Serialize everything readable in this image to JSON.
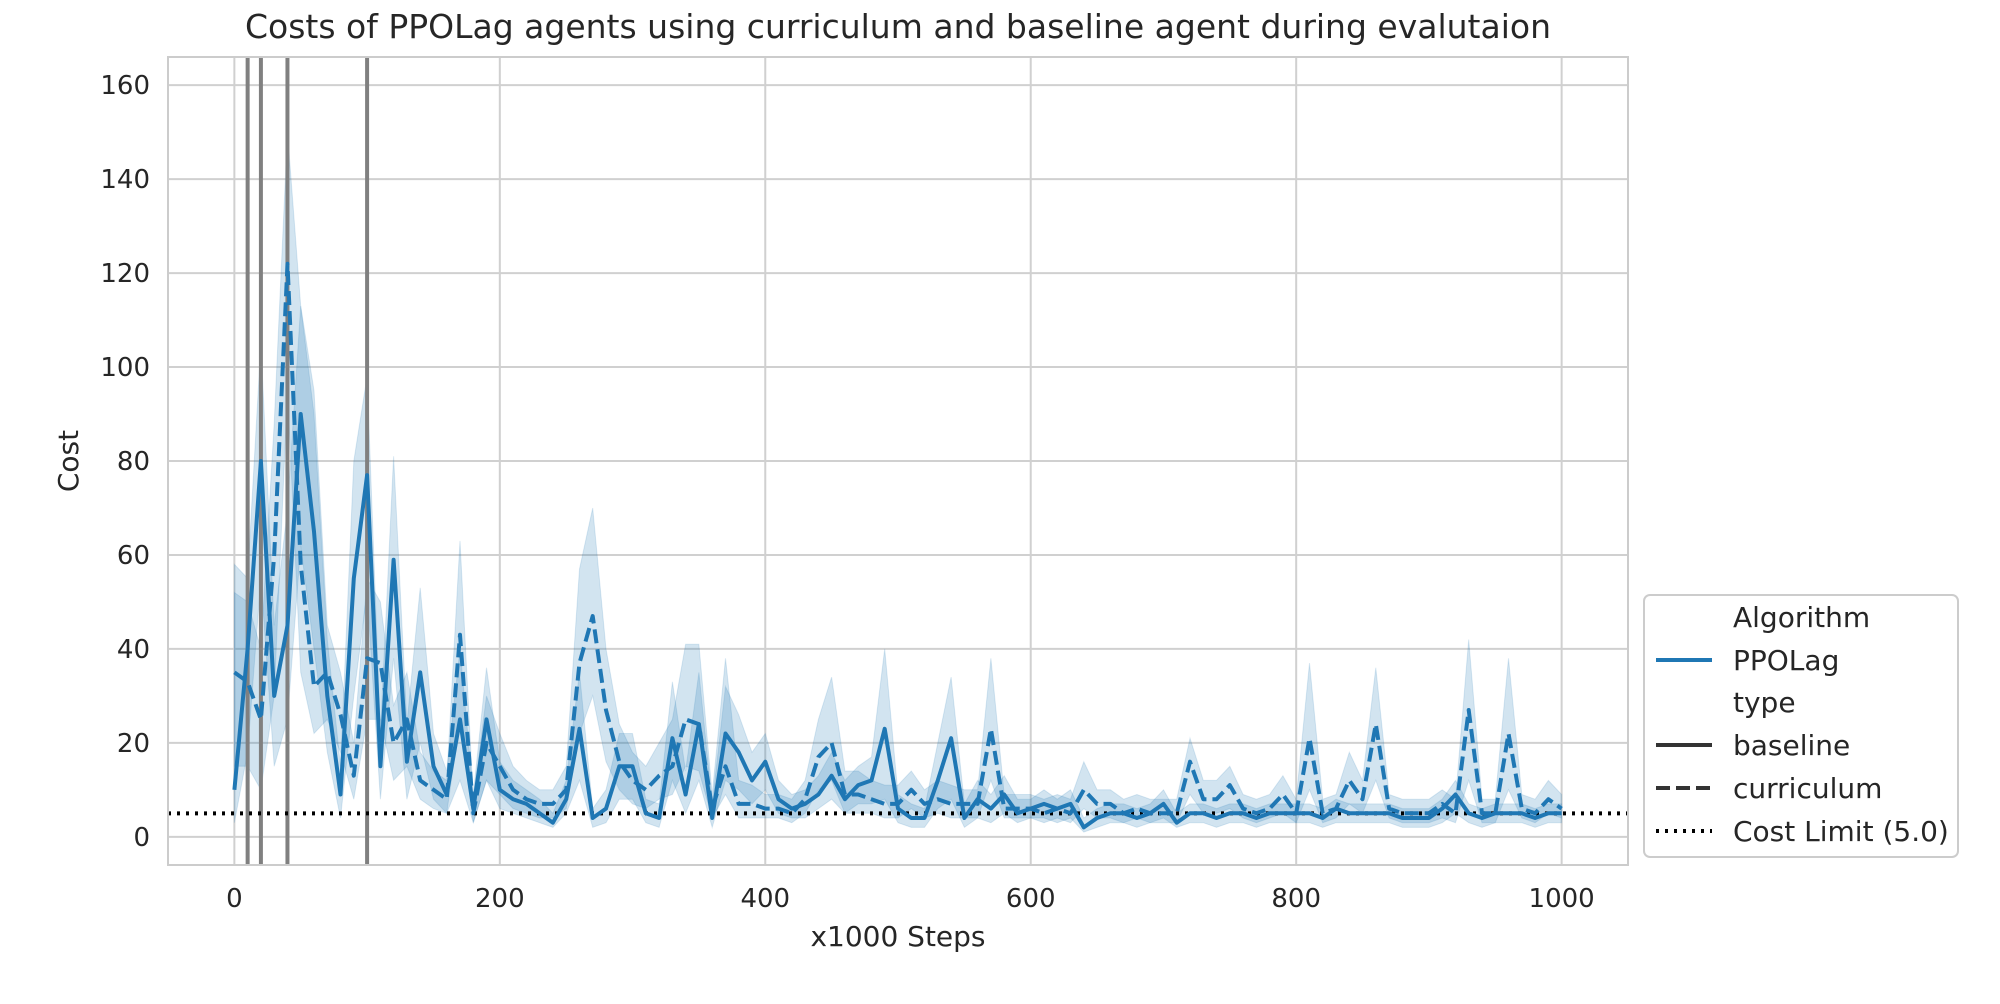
{
  "chart_data": {
    "type": "line",
    "title": "Costs of PPOLag agents using curriculum and baseline agent during evalutaion",
    "xlabel": "x1000 Steps",
    "ylabel": "Cost",
    "xlim": [
      -50,
      1050
    ],
    "ylim": [
      -6,
      166
    ],
    "xticks": [
      0,
      200,
      400,
      600,
      800,
      1000
    ],
    "yticks": [
      0,
      20,
      40,
      60,
      80,
      100,
      120,
      140,
      160
    ],
    "grid": true,
    "legend_position": "lower-right outside",
    "legend": {
      "title_algorithm": "Algorithm",
      "algorithm_entry": "PPOLag",
      "title_type": "type",
      "type_entries": [
        "baseline",
        "curriculum"
      ],
      "cost_limit_entry": "Cost Limit (5.0)"
    },
    "colors": {
      "series": "#1f77b4",
      "vlines": "#808080",
      "limit": "#000000",
      "grid": "#d0d0d0"
    },
    "cost_limit": 5.0,
    "curriculum_switch_steps": [
      10,
      20,
      40,
      100
    ],
    "series": [
      {
        "name": "baseline",
        "style": "solid",
        "x": [
          0,
          10,
          20,
          30,
          40,
          50,
          60,
          70,
          80,
          90,
          100,
          110,
          120,
          130,
          140,
          150,
          160,
          170,
          180,
          190,
          200,
          210,
          220,
          230,
          240,
          250,
          260,
          270,
          280,
          290,
          300,
          310,
          320,
          330,
          340,
          350,
          360,
          370,
          380,
          390,
          400,
          410,
          420,
          430,
          440,
          450,
          460,
          470,
          480,
          490,
          500,
          510,
          520,
          530,
          540,
          550,
          560,
          570,
          580,
          590,
          600,
          610,
          620,
          630,
          640,
          650,
          660,
          670,
          680,
          690,
          700,
          710,
          720,
          730,
          740,
          750,
          760,
          770,
          780,
          790,
          800,
          810,
          820,
          830,
          840,
          850,
          860,
          870,
          880,
          890,
          900,
          910,
          920,
          930,
          940,
          950,
          960,
          970,
          980,
          990,
          1000
        ],
        "y": [
          10,
          40,
          80,
          30,
          45,
          90,
          65,
          30,
          9,
          55,
          77,
          15,
          59,
          16,
          35,
          15,
          9,
          25,
          6,
          25,
          10,
          8,
          7,
          5,
          3,
          8,
          23,
          4,
          6,
          15,
          15,
          5,
          4,
          21,
          9,
          24,
          4,
          22,
          18,
          12,
          16,
          8,
          6,
          7,
          9,
          13,
          8,
          11,
          12,
          23,
          6,
          4,
          4,
          12,
          21,
          4,
          8,
          6,
          9,
          5,
          6,
          7,
          6,
          7,
          2,
          4,
          5,
          5,
          4,
          5,
          7,
          3,
          5,
          5,
          4,
          5,
          5,
          4,
          5,
          5,
          5,
          5,
          4,
          6,
          5,
          5,
          5,
          5,
          4,
          4,
          4,
          6,
          9,
          5,
          4,
          5,
          5,
          5,
          4,
          5,
          5
        ],
        "lower": [
          3,
          18,
          55,
          15,
          25,
          62,
          40,
          18,
          4,
          30,
          52,
          8,
          38,
          8,
          20,
          8,
          5,
          12,
          3,
          12,
          6,
          5,
          4,
          3,
          2,
          5,
          12,
          2,
          3,
          8,
          8,
          3,
          2,
          12,
          5,
          12,
          2,
          12,
          10,
          7,
          10,
          5,
          4,
          4,
          6,
          8,
          5,
          7,
          7,
          8,
          3,
          2,
          2,
          6,
          8,
          2,
          4,
          3,
          5,
          3,
          4,
          4,
          3,
          4,
          1,
          2,
          3,
          3,
          2,
          3,
          4,
          2,
          3,
          3,
          2,
          3,
          3,
          2,
          3,
          3,
          3,
          3,
          2,
          3,
          3,
          3,
          3,
          3,
          2,
          2,
          2,
          3,
          5,
          3,
          2,
          3,
          3,
          3,
          2,
          3,
          3
        ],
        "upper": [
          58,
          55,
          105,
          45,
          70,
          113,
          90,
          42,
          15,
          80,
          98,
          22,
          81,
          24,
          53,
          22,
          14,
          40,
          9,
          36,
          16,
          12,
          10,
          8,
          5,
          12,
          35,
          6,
          10,
          22,
          22,
          8,
          7,
          33,
          14,
          35,
          7,
          32,
          26,
          18,
          22,
          12,
          9,
          10,
          13,
          18,
          12,
          15,
          17,
          40,
          9,
          7,
          6,
          20,
          34,
          7,
          12,
          9,
          13,
          8,
          8,
          10,
          8,
          10,
          4,
          6,
          7,
          7,
          6,
          7,
          10,
          5,
          7,
          7,
          6,
          7,
          7,
          6,
          7,
          7,
          7,
          7,
          6,
          8,
          7,
          7,
          7,
          7,
          6,
          6,
          6,
          8,
          12,
          7,
          6,
          7,
          7,
          7,
          6,
          7,
          7
        ]
      },
      {
        "name": "curriculum",
        "style": "dashed",
        "x": [
          0,
          10,
          20,
          30,
          40,
          50,
          60,
          70,
          80,
          90,
          100,
          110,
          120,
          130,
          140,
          150,
          160,
          170,
          180,
          190,
          200,
          210,
          220,
          230,
          240,
          250,
          260,
          270,
          280,
          290,
          300,
          310,
          320,
          330,
          340,
          350,
          360,
          370,
          380,
          390,
          400,
          410,
          420,
          430,
          440,
          450,
          460,
          470,
          480,
          490,
          500,
          510,
          520,
          530,
          540,
          550,
          560,
          570,
          580,
          590,
          600,
          610,
          620,
          630,
          640,
          650,
          660,
          670,
          680,
          690,
          700,
          710,
          720,
          730,
          740,
          750,
          760,
          770,
          780,
          790,
          800,
          810,
          820,
          830,
          840,
          850,
          860,
          870,
          880,
          890,
          900,
          910,
          920,
          930,
          940,
          950,
          960,
          970,
          980,
          990,
          1000
        ],
        "y": [
          35,
          33,
          25,
          60,
          122,
          58,
          32,
          35,
          26,
          13,
          38,
          37,
          20,
          25,
          12,
          10,
          8,
          43,
          5,
          20,
          15,
          10,
          8,
          7,
          7,
          10,
          37,
          47,
          27,
          16,
          12,
          10,
          13,
          15,
          25,
          24,
          6,
          15,
          7,
          7,
          6,
          6,
          5,
          8,
          17,
          20,
          9,
          9,
          8,
          7,
          7,
          10,
          7,
          8,
          7,
          7,
          7,
          23,
          6,
          6,
          6,
          5,
          6,
          5,
          10,
          7,
          7,
          5,
          6,
          5,
          5,
          5,
          16,
          8,
          8,
          11,
          6,
          5,
          6,
          9,
          5,
          21,
          5,
          6,
          12,
          8,
          24,
          6,
          5,
          5,
          5,
          7,
          5,
          27,
          5,
          5,
          22,
          6,
          5,
          8,
          6
        ],
        "lower": [
          15,
          15,
          10,
          30,
          95,
          35,
          22,
          25,
          18,
          8,
          25,
          25,
          12,
          15,
          8,
          6,
          5,
          25,
          3,
          12,
          9,
          6,
          5,
          4,
          4,
          6,
          22,
          30,
          16,
          10,
          7,
          6,
          8,
          9,
          15,
          14,
          4,
          9,
          4,
          4,
          4,
          4,
          3,
          5,
          10,
          12,
          5,
          5,
          5,
          4,
          4,
          6,
          4,
          5,
          4,
          4,
          4,
          12,
          4,
          4,
          4,
          3,
          4,
          3,
          6,
          4,
          4,
          3,
          4,
          3,
          3,
          3,
          9,
          5,
          5,
          6,
          4,
          3,
          4,
          5,
          3,
          10,
          3,
          4,
          7,
          5,
          12,
          4,
          3,
          3,
          3,
          4,
          3,
          12,
          3,
          3,
          10,
          4,
          3,
          5,
          4
        ],
        "upper": [
          52,
          50,
          40,
          88,
          150,
          113,
          95,
          45,
          35,
          20,
          55,
          50,
          28,
          35,
          18,
          14,
          12,
          63,
          8,
          30,
          22,
          15,
          12,
          10,
          10,
          15,
          57,
          70,
          40,
          24,
          18,
          15,
          20,
          25,
          41,
          41,
          9,
          38,
          12,
          11,
          9,
          9,
          8,
          12,
          25,
          34,
          14,
          14,
          12,
          11,
          11,
          14,
          10,
          12,
          11,
          10,
          10,
          38,
          9,
          9,
          9,
          8,
          9,
          8,
          16,
          10,
          10,
          8,
          9,
          8,
          8,
          8,
          21,
          12,
          12,
          15,
          9,
          8,
          9,
          13,
          8,
          37,
          8,
          9,
          18,
          12,
          36,
          9,
          8,
          8,
          8,
          10,
          8,
          42,
          8,
          8,
          38,
          9,
          8,
          12,
          9
        ]
      }
    ]
  }
}
